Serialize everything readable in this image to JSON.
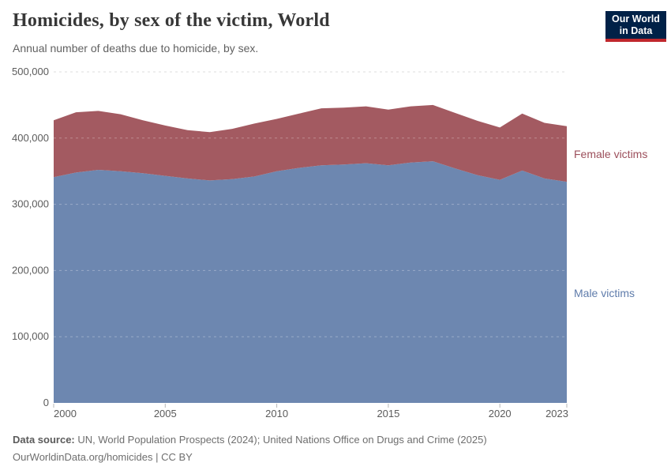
{
  "header": {
    "title": "Homicides, by sex of the victim, World",
    "subtitle": "Annual number of deaths due to homicide, by sex."
  },
  "logo": {
    "line1": "Our World",
    "line2": "in Data",
    "bg_color": "#002147",
    "bar_color": "#c0282d"
  },
  "legend": {
    "female": {
      "label": "Female victims",
      "color": "#9c4f5b"
    },
    "male": {
      "label": "Male victims",
      "color": "#5f7cab"
    }
  },
  "footer": {
    "source_prefix": "Data source:",
    "source_text": " UN, World Population Prospects (2024); United Nations Office on Drugs and Crime (2025)",
    "license_line": "OurWorldinData.org/homicides | CC BY"
  },
  "chart_data": {
    "type": "area",
    "stacked": true,
    "title": "Homicides, by sex of the victim, World",
    "xlabel": "",
    "ylabel": "Annual number of deaths due to homicide",
    "ylim": [
      0,
      500000
    ],
    "grid": "horizontal-dashed",
    "legend_position": "right",
    "x": [
      2000,
      2001,
      2002,
      2003,
      2004,
      2005,
      2006,
      2007,
      2008,
      2009,
      2010,
      2011,
      2012,
      2013,
      2014,
      2015,
      2016,
      2017,
      2018,
      2019,
      2020,
      2021,
      2022,
      2023
    ],
    "series": [
      {
        "name": "Male victims",
        "color": "#6d87b0",
        "values": [
          341000,
          348000,
          352000,
          350000,
          347000,
          343000,
          339000,
          336000,
          338000,
          342000,
          350000,
          355000,
          359000,
          360000,
          362000,
          359000,
          363000,
          365000,
          354000,
          344000,
          337000,
          351000,
          339000,
          334000
        ]
      },
      {
        "name": "Female victims",
        "color": "#a35a61",
        "values": [
          86000,
          91000,
          89000,
          86000,
          80000,
          76000,
          73000,
          73000,
          76000,
          80000,
          79000,
          82000,
          86000,
          86000,
          86000,
          84000,
          85000,
          85000,
          84000,
          82000,
          79000,
          86000,
          84000,
          84000
        ]
      }
    ],
    "yticks": [
      {
        "value": 0,
        "label": "0"
      },
      {
        "value": 100000,
        "label": "100,000"
      },
      {
        "value": 200000,
        "label": "200,000"
      },
      {
        "value": 300000,
        "label": "300,000"
      },
      {
        "value": 400000,
        "label": "400,000"
      },
      {
        "value": 500000,
        "label": "500,000"
      }
    ],
    "xticks": [
      {
        "value": 2000,
        "label": "2000"
      },
      {
        "value": 2005,
        "label": "2005"
      },
      {
        "value": 2010,
        "label": "2010"
      },
      {
        "value": 2015,
        "label": "2015"
      },
      {
        "value": 2020,
        "label": "2020"
      },
      {
        "value": 2023,
        "label": "2023"
      }
    ]
  }
}
